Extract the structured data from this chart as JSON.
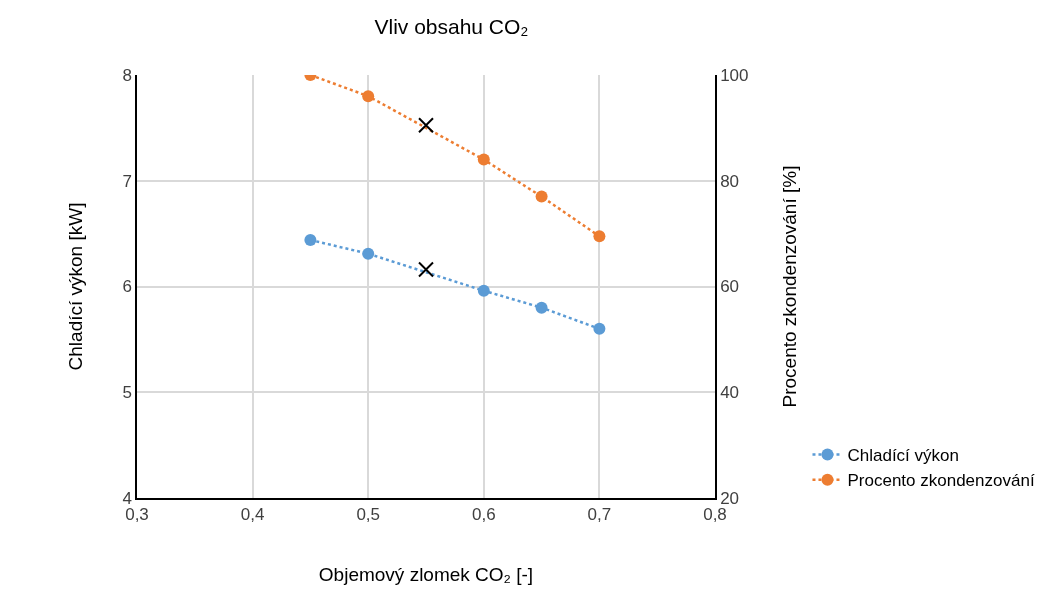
{
  "chart_data": {
    "type": "line",
    "title": "Vliv obsahu CO₂",
    "xlabel": "Objemový zlomek CO₂ [-]",
    "ylabel": "Chladící výkon [kW]",
    "y2label": "Procento zkondenzování [%]",
    "xlim": [
      0.3,
      0.8
    ],
    "xticks": [
      {
        "value": 0.3,
        "label": "0,3"
      },
      {
        "value": 0.4,
        "label": "0,4"
      },
      {
        "value": 0.5,
        "label": "0,5"
      },
      {
        "value": 0.6,
        "label": "0,6"
      },
      {
        "value": 0.7,
        "label": "0,7"
      },
      {
        "value": 0.8,
        "label": "0,8"
      }
    ],
    "ylim": [
      4,
      8
    ],
    "yticks": [
      4,
      5,
      6,
      7,
      8
    ],
    "y2lim": [
      20,
      100
    ],
    "y2ticks": [
      20,
      40,
      60,
      80,
      100
    ],
    "grid": true,
    "legend": "right",
    "series": [
      {
        "name": "Chladící výkon",
        "color": "#5b9bd5",
        "marker": "circle",
        "line_style": "dotted",
        "axis": "y",
        "x": [
          0.45,
          0.5,
          0.6,
          0.65,
          0.7
        ],
        "values": [
          6.44,
          6.31,
          5.96,
          5.8,
          5.6
        ]
      },
      {
        "name": "Procento zkondenzování",
        "color": "#ed7d31",
        "marker": "circle",
        "line_style": "dotted",
        "axis": "y2",
        "x": [
          0.45,
          0.5,
          0.6,
          0.65,
          0.7
        ],
        "values": [
          100,
          96,
          84,
          77,
          69.5
        ]
      },
      {
        "type": "scatter",
        "color": "#000000",
        "marker": "cross",
        "axis": "y",
        "x": [
          0.55
        ],
        "values": [
          6.16
        ]
      },
      {
        "type": "scatter",
        "color": "#000000",
        "marker": "cross",
        "axis": "y2",
        "x": [
          0.55
        ],
        "values": [
          90.5
        ]
      }
    ]
  }
}
